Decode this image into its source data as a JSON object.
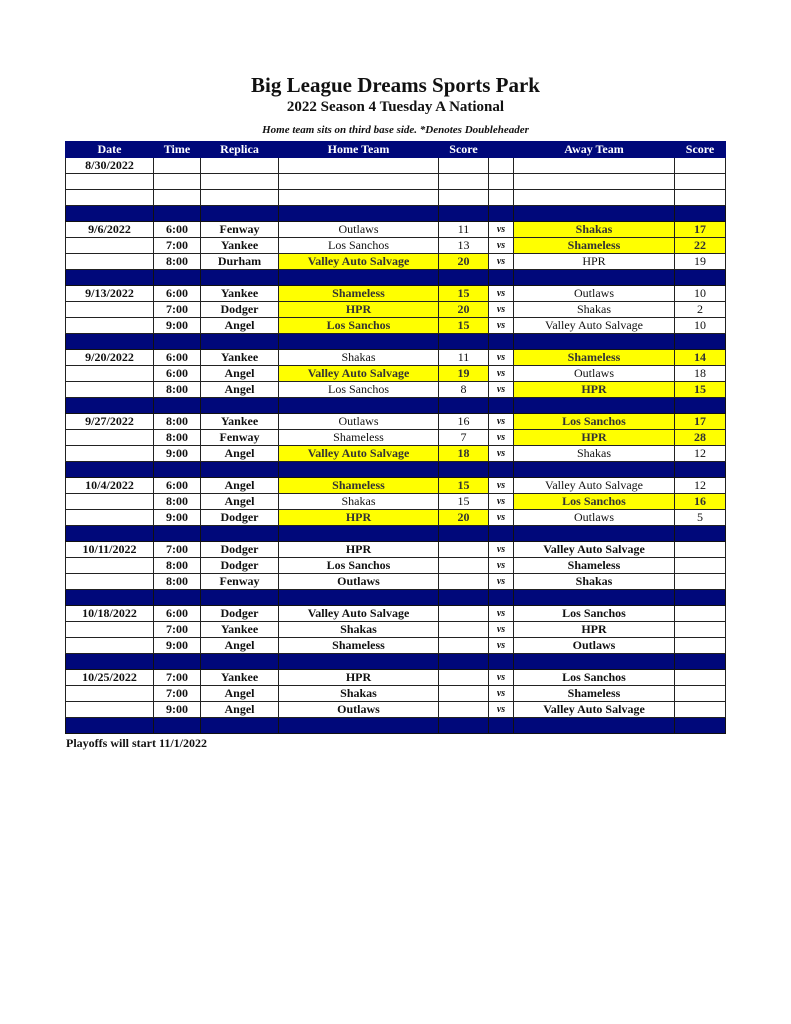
{
  "header": {
    "title": "Big League Dreams Sports Park",
    "subtitle": "2022 Season 4 Tuesday A National",
    "note": "Home team sits on third base side.  *Denotes Doubleheader"
  },
  "columns": [
    "Date",
    "Time",
    "Replica",
    "Home Team",
    "Score",
    "",
    "Away Team",
    "Score"
  ],
  "colors": {
    "header": "#00087a",
    "winner": "#ffff00"
  },
  "vs_label": "vs",
  "weeks": [
    {
      "date": "8/30/2022",
      "games": [
        {},
        {},
        {}
      ]
    },
    {
      "date": "9/6/2022",
      "games": [
        {
          "time": "6:00",
          "replica": "Fenway",
          "home": "Outlaws",
          "home_score": "11",
          "away": "Shakas",
          "away_score": "17",
          "winner": "away"
        },
        {
          "time": "7:00",
          "replica": "Yankee",
          "home": "Los Sanchos",
          "home_score": "13",
          "away": "Shameless",
          "away_score": "22",
          "winner": "away"
        },
        {
          "time": "8:00",
          "replica": "Durham",
          "home": "Valley Auto Salvage",
          "home_score": "20",
          "away": "HPR",
          "away_score": "19",
          "winner": "home"
        }
      ]
    },
    {
      "date": "9/13/2022",
      "games": [
        {
          "time": "6:00",
          "replica": "Yankee",
          "home": "Shameless",
          "home_score": "15",
          "away": "Outlaws",
          "away_score": "10",
          "winner": "home"
        },
        {
          "time": "7:00",
          "replica": "Dodger",
          "home": "HPR",
          "home_score": "20",
          "away": "Shakas",
          "away_score": "2",
          "winner": "home"
        },
        {
          "time": "9:00",
          "replica": "Angel",
          "home": "Los Sanchos",
          "home_score": "15",
          "away": "Valley Auto Salvage",
          "away_score": "10",
          "winner": "home"
        }
      ]
    },
    {
      "date": "9/20/2022",
      "games": [
        {
          "time": "6:00",
          "replica": "Yankee",
          "home": "Shakas",
          "home_score": "11",
          "away": "Shameless",
          "away_score": "14",
          "winner": "away"
        },
        {
          "time": "6:00",
          "replica": "Angel",
          "home": "Valley Auto Salvage",
          "home_score": "19",
          "away": "Outlaws",
          "away_score": "18",
          "winner": "home"
        },
        {
          "time": "8:00",
          "replica": "Angel",
          "home": "Los Sanchos",
          "home_score": "8",
          "away": "HPR",
          "away_score": "15",
          "winner": "away"
        }
      ]
    },
    {
      "date": "9/27/2022",
      "games": [
        {
          "time": "8:00",
          "replica": "Yankee",
          "home": "Outlaws",
          "home_score": "16",
          "away": "Los Sanchos",
          "away_score": "17",
          "winner": "away"
        },
        {
          "time": "8:00",
          "replica": "Fenway",
          "home": "Shameless",
          "home_score": "7",
          "away": "HPR",
          "away_score": "28",
          "winner": "away"
        },
        {
          "time": "9:00",
          "replica": "Angel",
          "home": "Valley Auto Salvage",
          "home_score": "18",
          "away": "Shakas",
          "away_score": "12",
          "winner": "home"
        }
      ]
    },
    {
      "date": "10/4/2022",
      "games": [
        {
          "time": "6:00",
          "replica": "Angel",
          "home": "Shameless",
          "home_score": "15",
          "away": "Valley Auto Salvage",
          "away_score": "12",
          "winner": "home"
        },
        {
          "time": "8:00",
          "replica": "Angel",
          "home": "Shakas",
          "home_score": "15",
          "away": "Los Sanchos",
          "away_score": "16",
          "winner": "away"
        },
        {
          "time": "9:00",
          "replica": "Dodger",
          "home": "HPR",
          "home_score": "20",
          "away": "Outlaws",
          "away_score": "5",
          "winner": "home"
        }
      ]
    },
    {
      "date": "10/11/2022",
      "games": [
        {
          "time": "7:00",
          "replica": "Dodger",
          "home": "HPR",
          "away": "Valley Auto Salvage"
        },
        {
          "time": "8:00",
          "replica": "Dodger",
          "home": "Los Sanchos",
          "away": "Shameless"
        },
        {
          "time": "8:00",
          "replica": "Fenway",
          "home": "Outlaws",
          "away": "Shakas"
        }
      ]
    },
    {
      "date": "10/18/2022",
      "games": [
        {
          "time": "6:00",
          "replica": "Dodger",
          "home": "Valley Auto Salvage",
          "away": "Los Sanchos"
        },
        {
          "time": "7:00",
          "replica": "Yankee",
          "home": "Shakas",
          "away": "HPR"
        },
        {
          "time": "9:00",
          "replica": "Angel",
          "home": "Shameless",
          "away": "Outlaws"
        }
      ]
    },
    {
      "date": "10/25/2022",
      "games": [
        {
          "time": "7:00",
          "replica": "Yankee",
          "home": "HPR",
          "away": "Los Sanchos"
        },
        {
          "time": "7:00",
          "replica": "Angel",
          "home": "Shakas",
          "away": "Shameless"
        },
        {
          "time": "9:00",
          "replica": "Angel",
          "home": "Outlaws",
          "away": "Valley Auto Salvage"
        }
      ]
    }
  ],
  "footer": "Playoffs will start 11/1/2022"
}
